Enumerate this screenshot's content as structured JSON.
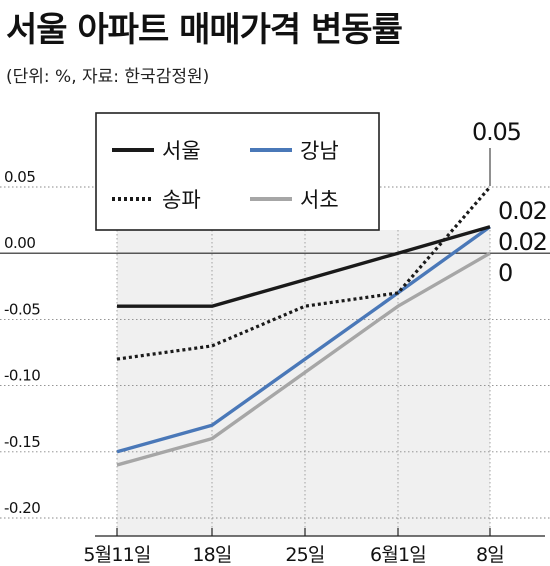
{
  "title": "서울 아파트 매매가격 변동률",
  "subtitle": "(단위: %, 자료: 한국감정원)",
  "chart_data": {
    "type": "line",
    "title": "서울 아파트 매매가격 변동률",
    "categories": [
      "5월11일",
      "18일",
      "25일",
      "6월1일",
      "8일"
    ],
    "y_ticks": [
      "0.05",
      "0.00",
      "-0.05",
      "-0.10",
      "-0.15",
      "-0.20"
    ],
    "ylim": [
      -0.2,
      0.05
    ],
    "series": [
      {
        "name": "서울",
        "values": [
          -0.04,
          -0.04,
          -0.02,
          0.0,
          0.02
        ],
        "color": "#1a1a1a",
        "style": "solid"
      },
      {
        "name": "송파",
        "values": [
          -0.08,
          -0.07,
          -0.04,
          -0.03,
          0.05
        ],
        "color": "#1a1a1a",
        "style": "dotted"
      },
      {
        "name": "강남",
        "values": [
          -0.15,
          -0.13,
          -0.08,
          -0.03,
          0.02
        ],
        "color": "#4a78b8",
        "style": "solid"
      },
      {
        "name": "서초",
        "values": [
          -0.16,
          -0.14,
          -0.09,
          -0.04,
          0.0
        ],
        "color": "#a6a6a6",
        "style": "solid"
      }
    ],
    "end_labels": [
      "0.05",
      "0.02",
      "0.02",
      "0"
    ],
    "legend_position": "top-left",
    "shading": "gray band under lines from 5월11일 to 8일",
    "grid": "dashed horizontal lines at ticks"
  }
}
